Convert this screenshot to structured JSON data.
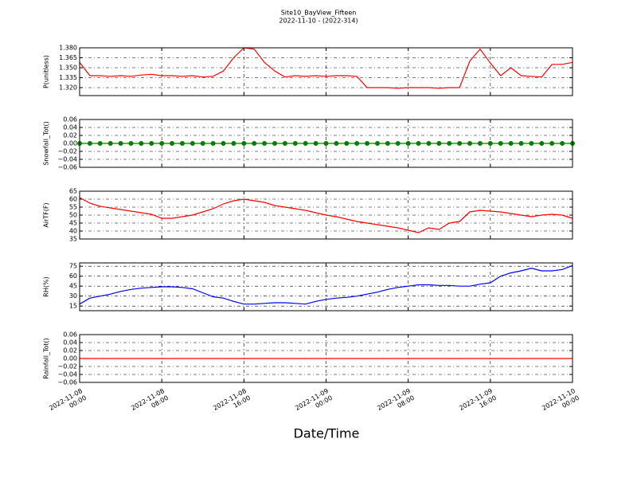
{
  "title": "Site10_BayView_Fifteen",
  "subtitle": "2022-11-10 - (2022-314)",
  "xlabel": "Date/Time",
  "xlim": [
    "2022-11-08 00:00",
    "2022-11-10 00:00"
  ],
  "xticks": [
    {
      "value": "2022-11-08 00:00",
      "label": "2022-11-08\n00:00"
    },
    {
      "value": "2022-11-08 08:00",
      "label": "2022-11-08\n08:00"
    },
    {
      "value": "2022-11-08 16:00",
      "label": "2022-11-08\n16:00"
    },
    {
      "value": "2022-11-09 00:00",
      "label": "2022-11-09\n00:00"
    },
    {
      "value": "2022-11-09 08:00",
      "label": "2022-11-09\n08:00"
    },
    {
      "value": "2022-11-09 16:00",
      "label": "2022-11-09\n16:00"
    },
    {
      "value": "2022-11-10 00:00",
      "label": "2022-11-10\n00:00"
    }
  ],
  "x": [
    "2022-11-08 00:00",
    "2022-11-08 01:00",
    "2022-11-08 02:00",
    "2022-11-08 03:00",
    "2022-11-08 04:00",
    "2022-11-08 05:00",
    "2022-11-08 06:00",
    "2022-11-08 07:00",
    "2022-11-08 08:00",
    "2022-11-08 09:00",
    "2022-11-08 10:00",
    "2022-11-08 11:00",
    "2022-11-08 12:00",
    "2022-11-08 13:00",
    "2022-11-08 14:00",
    "2022-11-08 15:00",
    "2022-11-08 16:00",
    "2022-11-08 17:00",
    "2022-11-08 18:00",
    "2022-11-08 19:00",
    "2022-11-08 20:00",
    "2022-11-08 21:00",
    "2022-11-08 22:00",
    "2022-11-08 23:00",
    "2022-11-09 00:00",
    "2022-11-09 01:00",
    "2022-11-09 02:00",
    "2022-11-09 03:00",
    "2022-11-09 04:00",
    "2022-11-09 05:00",
    "2022-11-09 06:00",
    "2022-11-09 07:00",
    "2022-11-09 08:00",
    "2022-11-09 09:00",
    "2022-11-09 10:00",
    "2022-11-09 11:00",
    "2022-11-09 12:00",
    "2022-11-09 13:00",
    "2022-11-09 14:00",
    "2022-11-09 15:00",
    "2022-11-09 16:00",
    "2022-11-09 17:00",
    "2022-11-09 18:00",
    "2022-11-09 19:00",
    "2022-11-09 20:00",
    "2022-11-09 21:00",
    "2022-11-09 22:00",
    "2022-11-09 23:00",
    "2022-11-10 00:00"
  ],
  "chart_data": [
    {
      "type": "line",
      "ylabel": "P(unitless)",
      "color": "#ff0000",
      "grid": true,
      "ylim": [
        1.308,
        1.38
      ],
      "yticks": [
        {
          "value": 1.32,
          "label": "1.320"
        },
        {
          "value": 1.335,
          "label": "1.335"
        },
        {
          "value": 1.35,
          "label": "1.350"
        },
        {
          "value": 1.365,
          "label": "1.365"
        },
        {
          "value": 1.38,
          "label": "1.380"
        }
      ],
      "values": [
        1.358,
        1.338,
        1.338,
        1.337,
        1.338,
        1.337,
        1.339,
        1.34,
        1.338,
        1.338,
        1.337,
        1.338,
        1.336,
        1.337,
        1.345,
        1.365,
        1.38,
        1.378,
        1.358,
        1.345,
        1.336,
        1.338,
        1.337,
        1.338,
        1.337,
        1.338,
        1.338,
        1.337,
        1.32,
        1.32,
        1.32,
        1.319,
        1.32,
        1.32,
        1.32,
        1.319,
        1.32,
        1.32,
        1.36,
        1.378,
        1.357,
        1.338,
        1.35,
        1.338,
        1.337,
        1.336,
        1.355,
        1.355,
        1.358
      ]
    },
    {
      "type": "line",
      "ylabel": "Snowfall_Tot()",
      "color": "#008000",
      "markers": true,
      "grid": true,
      "ylim": [
        -0.06,
        0.06
      ],
      "yticks": [
        {
          "value": -0.06,
          "label": "−0.06"
        },
        {
          "value": -0.04,
          "label": "−0.04"
        },
        {
          "value": -0.02,
          "label": "−0.02"
        },
        {
          "value": 0,
          "label": "0.00"
        },
        {
          "value": 0.02,
          "label": "0.02"
        },
        {
          "value": 0.04,
          "label": "0.04"
        },
        {
          "value": 0.06,
          "label": "0.06"
        }
      ],
      "values": [
        0,
        0,
        0,
        0,
        0,
        0,
        0,
        0,
        0,
        0,
        0,
        0,
        0,
        0,
        0,
        0,
        0,
        0,
        0,
        0,
        0,
        0,
        0,
        0,
        0,
        0,
        0,
        0,
        0,
        0,
        0,
        0,
        0,
        0,
        0,
        0,
        0,
        0,
        0,
        0,
        0,
        0,
        0,
        0,
        0,
        0,
        0,
        0,
        0
      ]
    },
    {
      "type": "line",
      "ylabel": "AirTF(F)",
      "color": "#ff0000",
      "grid": true,
      "ylim": [
        35,
        65
      ],
      "yticks": [
        35,
        40,
        45,
        50,
        55,
        60,
        65
      ],
      "values": [
        61,
        57.5,
        55.5,
        54.5,
        53.5,
        52.5,
        51.5,
        50.5,
        48,
        48,
        49,
        50,
        52,
        54,
        57,
        59,
        60,
        59,
        58,
        56,
        55,
        54,
        53,
        51.5,
        50,
        49,
        47.5,
        46,
        45,
        44,
        43,
        42,
        40.5,
        39,
        42,
        41,
        45,
        46,
        52,
        53,
        52.5,
        52,
        51,
        50,
        49,
        50,
        50.5,
        50,
        48
      ]
    },
    {
      "type": "line",
      "ylabel": "RH(%)",
      "color": "#0000ff",
      "grid": true,
      "ylim": [
        8,
        80
      ],
      "yticks": [
        15,
        30,
        45,
        60,
        75
      ],
      "values": [
        18,
        27,
        30,
        33,
        37,
        40,
        42,
        43,
        44,
        44,
        43,
        41,
        35,
        29,
        27,
        22,
        18,
        18,
        19,
        20,
        20,
        19,
        18,
        22,
        25,
        27,
        28,
        30,
        33,
        36,
        40,
        43,
        45,
        47,
        47,
        46,
        46,
        45,
        45,
        48,
        50,
        60,
        65,
        68,
        72,
        68,
        68,
        70,
        76
      ]
    },
    {
      "type": "line",
      "ylabel": "Rainfall_Tot()",
      "color": "#ff0000",
      "grid": true,
      "ylim": [
        -0.06,
        0.06
      ],
      "yticks": [
        {
          "value": -0.06,
          "label": "−0.06"
        },
        {
          "value": -0.04,
          "label": "−0.04"
        },
        {
          "value": -0.02,
          "label": "−0.02"
        },
        {
          "value": 0,
          "label": "0.00"
        },
        {
          "value": 0.02,
          "label": "0.02"
        },
        {
          "value": 0.04,
          "label": "0.04"
        },
        {
          "value": 0.06,
          "label": "0.06"
        }
      ],
      "values": [
        0,
        0,
        0,
        0,
        0,
        0,
        0,
        0,
        0,
        0,
        0,
        0,
        0,
        0,
        0,
        0,
        0,
        0,
        0,
        0,
        0,
        0,
        0,
        0,
        0,
        0,
        0,
        0,
        0,
        0,
        0,
        0,
        0,
        0,
        0,
        0,
        0,
        0,
        0,
        0,
        0,
        0,
        0,
        0,
        0,
        0,
        0,
        0,
        0
      ]
    }
  ]
}
